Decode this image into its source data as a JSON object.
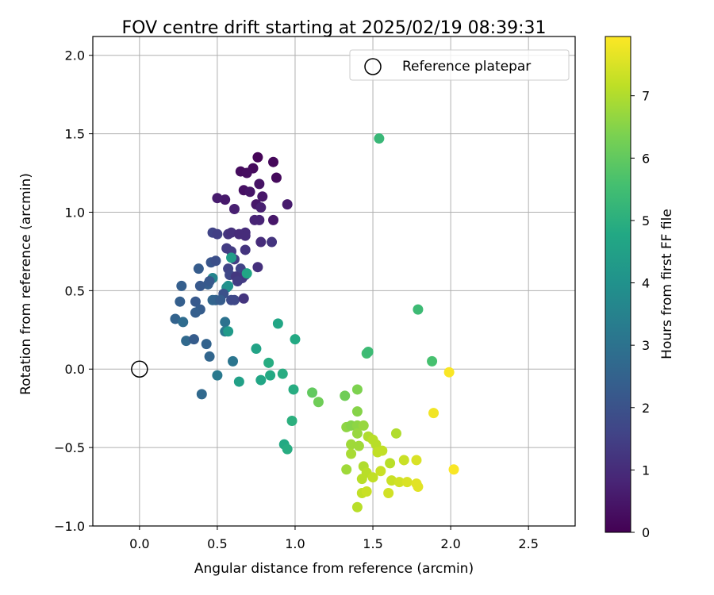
{
  "chart_data": {
    "type": "scatter",
    "title": "FOV centre drift starting at 2025/02/19 08:39:31",
    "xlabel": "Angular distance from reference (arcmin)",
    "ylabel": "Rotation from reference (arcmin)",
    "xlim": [
      -0.3,
      2.8
    ],
    "ylim": [
      -1.0,
      2.12
    ],
    "xticks": [
      "0.0",
      "0.5",
      "1.0",
      "1.5",
      "2.0",
      "2.5"
    ],
    "yticks": [
      "−1.0",
      "−0.5",
      "0.0",
      "0.5",
      "1.0",
      "1.5",
      "2.0"
    ],
    "grid": true,
    "legend": {
      "position": "top-right",
      "entries": [
        "Reference platepar"
      ]
    },
    "reference_point": {
      "x": 0.0,
      "y": 0.0
    },
    "colorbar": {
      "label": "Hours from first FF file",
      "range": [
        0,
        7.95
      ],
      "ticks": [
        "0",
        "1",
        "2",
        "3",
        "4",
        "5",
        "6",
        "7"
      ],
      "colormap": "viridis"
    },
    "points": [
      {
        "x": 0.76,
        "y": 1.35,
        "h": 0.1
      },
      {
        "x": 0.86,
        "y": 1.32,
        "h": 0.15
      },
      {
        "x": 0.73,
        "y": 1.28,
        "h": 0.2
      },
      {
        "x": 0.65,
        "y": 1.26,
        "h": 0.25
      },
      {
        "x": 0.69,
        "y": 1.25,
        "h": 0.3
      },
      {
        "x": 0.88,
        "y": 1.22,
        "h": 0.2
      },
      {
        "x": 0.77,
        "y": 1.18,
        "h": 0.4
      },
      {
        "x": 0.67,
        "y": 1.14,
        "h": 0.35
      },
      {
        "x": 0.71,
        "y": 1.13,
        "h": 0.45
      },
      {
        "x": 0.79,
        "y": 1.1,
        "h": 0.5
      },
      {
        "x": 0.55,
        "y": 1.08,
        "h": 0.55
      },
      {
        "x": 0.5,
        "y": 1.09,
        "h": 0.6
      },
      {
        "x": 0.75,
        "y": 1.05,
        "h": 0.5
      },
      {
        "x": 0.95,
        "y": 1.05,
        "h": 0.6
      },
      {
        "x": 0.78,
        "y": 1.03,
        "h": 0.7
      },
      {
        "x": 0.61,
        "y": 1.02,
        "h": 0.7
      },
      {
        "x": 0.74,
        "y": 0.95,
        "h": 0.8
      },
      {
        "x": 0.86,
        "y": 0.95,
        "h": 0.5
      },
      {
        "x": 0.77,
        "y": 0.95,
        "h": 0.8
      },
      {
        "x": 0.47,
        "y": 0.87,
        "h": 1.6
      },
      {
        "x": 0.5,
        "y": 0.86,
        "h": 1.5
      },
      {
        "x": 0.57,
        "y": 0.86,
        "h": 1.2
      },
      {
        "x": 0.59,
        "y": 0.87,
        "h": 1.1
      },
      {
        "x": 0.64,
        "y": 0.86,
        "h": 1.0
      },
      {
        "x": 0.68,
        "y": 0.87,
        "h": 1.0
      },
      {
        "x": 0.68,
        "y": 0.85,
        "h": 1.0
      },
      {
        "x": 0.78,
        "y": 0.81,
        "h": 1.0
      },
      {
        "x": 0.85,
        "y": 0.81,
        "h": 1.2
      },
      {
        "x": 0.56,
        "y": 0.77,
        "h": 1.4
      },
      {
        "x": 0.59,
        "y": 0.75,
        "h": 1.4
      },
      {
        "x": 0.68,
        "y": 0.76,
        "h": 1.2
      },
      {
        "x": 0.61,
        "y": 0.7,
        "h": 1.4
      },
      {
        "x": 0.46,
        "y": 0.68,
        "h": 2.1
      },
      {
        "x": 0.49,
        "y": 0.69,
        "h": 1.9
      },
      {
        "x": 0.59,
        "y": 0.71,
        "h": 4.4
      },
      {
        "x": 0.38,
        "y": 0.64,
        "h": 2.3
      },
      {
        "x": 0.57,
        "y": 0.64,
        "h": 1.6
      },
      {
        "x": 0.58,
        "y": 0.6,
        "h": 1.7
      },
      {
        "x": 0.65,
        "y": 0.64,
        "h": 1.6
      },
      {
        "x": 0.66,
        "y": 0.58,
        "h": 1.4
      },
      {
        "x": 0.68,
        "y": 0.6,
        "h": 1.3
      },
      {
        "x": 0.69,
        "y": 0.61,
        "h": 4.7
      },
      {
        "x": 0.76,
        "y": 0.65,
        "h": 1.1
      },
      {
        "x": 0.62,
        "y": 0.59,
        "h": 1.3
      },
      {
        "x": 0.63,
        "y": 0.56,
        "h": 1.4
      },
      {
        "x": 0.47,
        "y": 0.58,
        "h": 3.6
      },
      {
        "x": 0.44,
        "y": 0.54,
        "h": 2.4
      },
      {
        "x": 0.45,
        "y": 0.56,
        "h": 2.2
      },
      {
        "x": 0.56,
        "y": 0.52,
        "h": 3.8
      },
      {
        "x": 0.57,
        "y": 0.53,
        "h": 4.0
      },
      {
        "x": 0.27,
        "y": 0.53,
        "h": 2.4
      },
      {
        "x": 0.39,
        "y": 0.53,
        "h": 2.2
      },
      {
        "x": 0.54,
        "y": 0.48,
        "h": 2.0
      },
      {
        "x": 0.59,
        "y": 0.44,
        "h": 1.8
      },
      {
        "x": 0.61,
        "y": 0.44,
        "h": 1.7
      },
      {
        "x": 0.67,
        "y": 0.45,
        "h": 1.2
      },
      {
        "x": 0.47,
        "y": 0.44,
        "h": 2.6
      },
      {
        "x": 0.49,
        "y": 0.44,
        "h": 2.5
      },
      {
        "x": 0.52,
        "y": 0.44,
        "h": 2.3
      },
      {
        "x": 0.26,
        "y": 0.43,
        "h": 2.4
      },
      {
        "x": 0.36,
        "y": 0.43,
        "h": 2.2
      },
      {
        "x": 0.39,
        "y": 0.38,
        "h": 2.3
      },
      {
        "x": 0.36,
        "y": 0.36,
        "h": 2.4
      },
      {
        "x": 0.23,
        "y": 0.32,
        "h": 2.5
      },
      {
        "x": 0.28,
        "y": 0.3,
        "h": 2.8
      },
      {
        "x": 0.55,
        "y": 0.3,
        "h": 3.0
      },
      {
        "x": 0.55,
        "y": 0.24,
        "h": 3.2
      },
      {
        "x": 0.57,
        "y": 0.24,
        "h": 4.3
      },
      {
        "x": 0.3,
        "y": 0.18,
        "h": 2.7
      },
      {
        "x": 0.35,
        "y": 0.19,
        "h": 2.3
      },
      {
        "x": 0.43,
        "y": 0.16,
        "h": 2.5
      },
      {
        "x": 0.45,
        "y": 0.08,
        "h": 2.6
      },
      {
        "x": 0.6,
        "y": 0.05,
        "h": 3.1
      },
      {
        "x": 0.5,
        "y": -0.04,
        "h": 3.2
      },
      {
        "x": 0.4,
        "y": -0.16,
        "h": 2.7
      },
      {
        "x": 0.64,
        "y": -0.08,
        "h": 4.5
      },
      {
        "x": 0.75,
        "y": 0.13,
        "h": 4.6
      },
      {
        "x": 0.78,
        "y": -0.07,
        "h": 4.7
      },
      {
        "x": 0.83,
        "y": 0.04,
        "h": 4.9
      },
      {
        "x": 0.84,
        "y": -0.04,
        "h": 4.8
      },
      {
        "x": 0.89,
        "y": 0.29,
        "h": 4.7
      },
      {
        "x": 0.92,
        "y": -0.03,
        "h": 4.9
      },
      {
        "x": 1.0,
        "y": 0.19,
        "h": 4.8
      },
      {
        "x": 0.99,
        "y": -0.13,
        "h": 4.9
      },
      {
        "x": 0.98,
        "y": -0.33,
        "h": 5.0
      },
      {
        "x": 0.93,
        "y": -0.48,
        "h": 4.8
      },
      {
        "x": 0.95,
        "y": -0.51,
        "h": 4.9
      },
      {
        "x": 1.54,
        "y": 1.47,
        "h": 5.3
      },
      {
        "x": 1.79,
        "y": 0.38,
        "h": 5.4
      },
      {
        "x": 1.46,
        "y": 0.1,
        "h": 5.5
      },
      {
        "x": 1.47,
        "y": 0.11,
        "h": 5.4
      },
      {
        "x": 1.88,
        "y": 0.05,
        "h": 5.6
      },
      {
        "x": 1.11,
        "y": -0.15,
        "h": 6.0
      },
      {
        "x": 1.15,
        "y": -0.21,
        "h": 6.2
      },
      {
        "x": 1.32,
        "y": -0.17,
        "h": 6.2
      },
      {
        "x": 1.4,
        "y": -0.13,
        "h": 6.4
      },
      {
        "x": 1.4,
        "y": -0.27,
        "h": 6.5
      },
      {
        "x": 1.33,
        "y": -0.37,
        "h": 6.6
      },
      {
        "x": 1.36,
        "y": -0.36,
        "h": 6.5
      },
      {
        "x": 1.4,
        "y": -0.36,
        "h": 6.6
      },
      {
        "x": 1.44,
        "y": -0.36,
        "h": 6.7
      },
      {
        "x": 1.4,
        "y": -0.41,
        "h": 6.7
      },
      {
        "x": 1.36,
        "y": -0.48,
        "h": 6.8
      },
      {
        "x": 1.41,
        "y": -0.49,
        "h": 6.8
      },
      {
        "x": 1.36,
        "y": -0.54,
        "h": 6.9
      },
      {
        "x": 1.47,
        "y": -0.43,
        "h": 7.0
      },
      {
        "x": 1.5,
        "y": -0.45,
        "h": 7.1
      },
      {
        "x": 1.52,
        "y": -0.48,
        "h": 7.1
      },
      {
        "x": 1.53,
        "y": -0.53,
        "h": 7.2
      },
      {
        "x": 1.56,
        "y": -0.52,
        "h": 7.2
      },
      {
        "x": 1.65,
        "y": -0.41,
        "h": 7.0
      },
      {
        "x": 1.33,
        "y": -0.64,
        "h": 6.8
      },
      {
        "x": 1.44,
        "y": -0.62,
        "h": 7.0
      },
      {
        "x": 1.46,
        "y": -0.66,
        "h": 7.1
      },
      {
        "x": 1.43,
        "y": -0.7,
        "h": 7.1
      },
      {
        "x": 1.5,
        "y": -0.69,
        "h": 7.2
      },
      {
        "x": 1.55,
        "y": -0.65,
        "h": 7.3
      },
      {
        "x": 1.61,
        "y": -0.6,
        "h": 7.1
      },
      {
        "x": 1.7,
        "y": -0.58,
        "h": 7.3
      },
      {
        "x": 1.78,
        "y": -0.58,
        "h": 7.5
      },
      {
        "x": 1.62,
        "y": -0.71,
        "h": 7.3
      },
      {
        "x": 1.67,
        "y": -0.72,
        "h": 7.4
      },
      {
        "x": 1.72,
        "y": -0.72,
        "h": 7.5
      },
      {
        "x": 1.78,
        "y": -0.73,
        "h": 7.6
      },
      {
        "x": 1.79,
        "y": -0.75,
        "h": 7.6
      },
      {
        "x": 1.43,
        "y": -0.79,
        "h": 7.2
      },
      {
        "x": 1.46,
        "y": -0.78,
        "h": 7.3
      },
      {
        "x": 1.6,
        "y": -0.79,
        "h": 7.4
      },
      {
        "x": 1.4,
        "y": -0.88,
        "h": 7.1
      },
      {
        "x": 1.89,
        "y": -0.28,
        "h": 7.8
      },
      {
        "x": 1.99,
        "y": -0.02,
        "h": 7.9
      },
      {
        "x": 2.02,
        "y": -0.64,
        "h": 7.9
      }
    ]
  }
}
